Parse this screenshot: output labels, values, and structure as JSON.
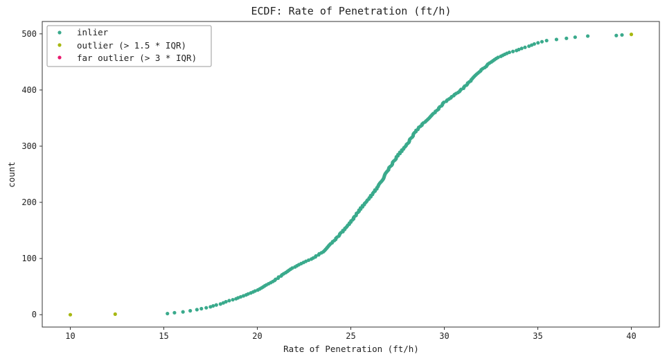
{
  "chart_data": {
    "type": "scatter",
    "title": "ECDF: Rate of Penetration (ft/h)",
    "xlabel": "Rate of Penetration (ft/h)",
    "ylabel": "count",
    "xlim": [
      8.5,
      41.5
    ],
    "ylim": [
      -22,
      522
    ],
    "xticks": [
      10,
      15,
      20,
      25,
      30,
      35,
      40
    ],
    "yticks": [
      0,
      100,
      200,
      300,
      400,
      500
    ],
    "grid": false,
    "legend_position": "top-left",
    "series": [
      {
        "name": "inlier",
        "color": "#3aaa8c",
        "ecdf_anchors": [
          [
            15.2,
            2
          ],
          [
            16.0,
            5
          ],
          [
            16.8,
            9
          ],
          [
            17.5,
            14
          ],
          [
            18.0,
            19
          ],
          [
            18.5,
            25
          ],
          [
            19.0,
            30
          ],
          [
            19.5,
            37
          ],
          [
            20.0,
            44
          ],
          [
            20.5,
            53
          ],
          [
            21.0,
            63
          ],
          [
            21.5,
            75
          ],
          [
            22.0,
            85
          ],
          [
            22.5,
            93
          ],
          [
            23.0,
            101
          ],
          [
            23.5,
            112
          ],
          [
            24.0,
            128
          ],
          [
            24.5,
            146
          ],
          [
            25.0,
            165
          ],
          [
            25.5,
            188
          ],
          [
            26.0,
            208
          ],
          [
            26.5,
            230
          ],
          [
            27.0,
            258
          ],
          [
            27.5,
            283
          ],
          [
            28.0,
            303
          ],
          [
            28.5,
            328
          ],
          [
            29.0,
            345
          ],
          [
            29.5,
            360
          ],
          [
            30.0,
            378
          ],
          [
            30.5,
            390
          ],
          [
            31.0,
            403
          ],
          [
            31.5,
            420
          ],
          [
            32.0,
            436
          ],
          [
            32.5,
            450
          ],
          [
            33.0,
            460
          ],
          [
            33.5,
            467
          ],
          [
            34.0,
            472
          ],
          [
            34.5,
            478
          ],
          [
            35.0,
            484
          ],
          [
            35.5,
            488
          ],
          [
            36.0,
            490
          ],
          [
            36.5,
            492
          ],
          [
            37.0,
            494
          ],
          [
            37.7,
            496
          ],
          [
            39.2,
            497
          ],
          [
            39.5,
            498
          ]
        ]
      },
      {
        "name": "outlier (> 1.5 * IQR)",
        "color": "#a7b812",
        "points": [
          [
            10.0,
            0
          ],
          [
            12.4,
            1
          ],
          [
            40.0,
            499
          ]
        ]
      },
      {
        "name": "far outlier (> 3 * IQR)",
        "color": "#e8196e",
        "points": []
      }
    ]
  }
}
